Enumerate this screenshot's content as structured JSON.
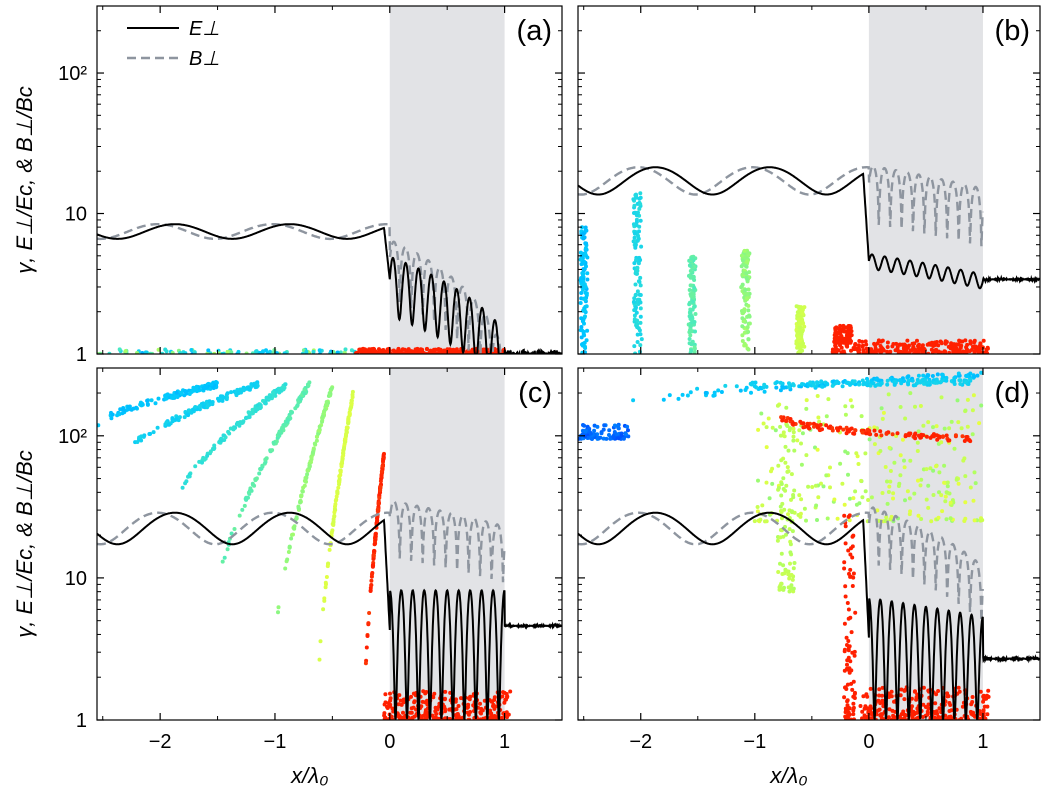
{
  "chart_data": {
    "type": "line+scatter",
    "x_axis": {
      "label": "x/λ₀",
      "range": [
        -2.55,
        1.5
      ],
      "ticks": [
        -2,
        -1,
        0,
        1
      ],
      "tick_labels": [
        "−2",
        "−1",
        "0",
        "1"
      ]
    },
    "y_axis": {
      "label": "γ, E⊥/Ec, & B⊥/Bc",
      "scale": "log",
      "range": [
        1,
        300
      ],
      "ticks": [
        1,
        10,
        100
      ],
      "tick_labels": [
        "1",
        "10",
        "10²"
      ]
    },
    "shaded_region": {
      "x": [
        0,
        1
      ],
      "color": "#e2e3e6"
    },
    "legend": {
      "position": "top-left of panel (a)",
      "entries": [
        {
          "label": "E⊥",
          "style": "solid",
          "color": "#000000"
        },
        {
          "label": "B⊥",
          "style": "dashed",
          "color": "#8e959f"
        }
      ]
    },
    "particle_colormap": [
      "#0050ff",
      "#00c8ff",
      "#40e8c8",
      "#b0ff60",
      "#e8ff40",
      "#ff2000"
    ],
    "panels": [
      {
        "label": "(a)",
        "E": {
          "lead_mean": 7.5,
          "lead_amp": 0.12,
          "lead_phase": 0.45,
          "inside": [
            3.4,
            1.0
          ],
          "inside_decay": 0.45,
          "outside": 1.0
        },
        "B": {
          "mean": 7.5,
          "amp": 0.12,
          "phase": 1.7,
          "inside": [
            6.5,
            1.0
          ],
          "behind_ratio": 0.2
        },
        "particles": [
          {
            "type": "band",
            "x": [
              -2.55,
              -0.3
            ],
            "y": [
              1.0,
              1.08
            ],
            "c": [
              0.15,
              0.6
            ]
          },
          {
            "type": "band",
            "x": [
              -0.3,
              1.0
            ],
            "y": [
              1.0,
              1.09
            ],
            "c": [
              1,
              1
            ],
            "dense": true
          }
        ]
      },
      {
        "label": "(b)",
        "E": {
          "lead_mean": 17.5,
          "lead_amp": 0.22,
          "lead_phase": 0.45,
          "inside": [
            4.6,
            3.3
          ],
          "inside_decay": 0.12,
          "outside": 3.4
        },
        "B": {
          "mean": 17.5,
          "amp": 0.22,
          "phase": 1.7,
          "inside": [
            22,
            15
          ],
          "behind_ratio": 0.2
        },
        "particles": [
          {
            "type": "spike",
            "x0": -2.5,
            "top": 8,
            "w": 0.05,
            "c": 0.2
          },
          {
            "type": "spike",
            "x0": -2.03,
            "top": 14,
            "w": 0.06,
            "c": 0.3
          },
          {
            "type": "spike",
            "x0": -1.55,
            "top": 5,
            "w": 0.05,
            "c": 0.45
          },
          {
            "type": "spike",
            "x0": -1.08,
            "top": 5.5,
            "w": 0.06,
            "c": 0.55
          },
          {
            "type": "spike",
            "x0": -0.6,
            "top": 2.2,
            "w": 0.06,
            "c": 0.7
          },
          {
            "type": "band",
            "x": [
              -0.32,
              1.05
            ],
            "y": [
              1.0,
              1.25
            ],
            "c": [
              1,
              1
            ],
            "dense": true
          },
          {
            "type": "band",
            "x": [
              -0.3,
              -0.15
            ],
            "y": [
              1.2,
              1.6
            ],
            "c": [
              1,
              1
            ]
          }
        ]
      },
      {
        "label": "(c)",
        "E": {
          "lead_mean": 23,
          "lead_amp": 0.25,
          "lead_phase": 0.45,
          "inside": [
            4.3,
            4.3
          ],
          "outside": 4.6,
          "oscillating": true
        },
        "B": {
          "mean": 23,
          "amp": 0.25,
          "phase": 1.7,
          "inside": [
            35,
            23
          ],
          "behind_ratio": 0.22
        },
        "particles": [
          {
            "type": "curve",
            "x": [
              -2.55,
              -1.5
            ],
            "y": [
              120,
              230
            ],
            "c": 0.2
          },
          {
            "type": "curve",
            "x": [
              -2.35,
              -1.15
            ],
            "y": [
              70,
              230
            ],
            "c": 0.25
          },
          {
            "type": "curve",
            "x": [
              -1.9,
              -0.9
            ],
            "y": [
              30,
              230
            ],
            "c": 0.35
          },
          {
            "type": "curve",
            "x": [
              -1.5,
              -0.7
            ],
            "y": [
              8,
              230
            ],
            "c": 0.45
          },
          {
            "type": "curve",
            "x": [
              -1.02,
              -0.5
            ],
            "y": [
              2.5,
              225
            ],
            "c": 0.55
          },
          {
            "type": "curve",
            "x": [
              -0.62,
              -0.32
            ],
            "y": [
              1.9,
              200
            ],
            "c": 0.75
          },
          {
            "type": "curve",
            "x": [
              -0.22,
              -0.05
            ],
            "y": [
              1.3,
              75
            ],
            "c": 1
          },
          {
            "type": "band",
            "x": [
              -0.05,
              1.05
            ],
            "y": [
              1.0,
              1.6
            ],
            "c": [
              1,
              1
            ],
            "dense": true
          }
        ]
      },
      {
        "label": "(d)",
        "E": {
          "lead_mean": 23,
          "lead_amp": 0.25,
          "lead_phase": 0.45,
          "inside": [
            3.8,
            2.8
          ],
          "inside_decay": 0.12,
          "outside": 2.7,
          "oscillating": true
        },
        "B": {
          "mean": 23,
          "amp": 0.25,
          "phase": 1.7,
          "inside": [
            32,
            12
          ],
          "behind_ratio": 0.22
        },
        "particles": [
          {
            "type": "band",
            "x": [
              -2.55,
              -2.1
            ],
            "y": [
              95,
              120
            ],
            "c": [
              0.0,
              0.08
            ]
          },
          {
            "type": "curve",
            "x": [
              -2.2,
              1.0
            ],
            "y": [
              165,
              270
            ],
            "c": 0.2
          },
          {
            "type": "curve",
            "x": [
              -1.6,
              0.9
            ],
            "y": [
              220,
              240
            ],
            "c": 0.25
          },
          {
            "type": "band",
            "x": [
              -1.0,
              1.0
            ],
            "y": [
              25,
              200
            ],
            "c": [
              0.55,
              0.8
            ],
            "dense": true
          },
          {
            "type": "band",
            "x": [
              -0.8,
              -0.65
            ],
            "y": [
              8,
              120
            ],
            "c": [
              0.6,
              0.7
            ]
          },
          {
            "type": "curve",
            "x": [
              -0.8,
              0.9
            ],
            "y": [
              150,
              95
            ],
            "c": 1
          },
          {
            "type": "band",
            "x": [
              -0.22,
              -0.12
            ],
            "y": [
              1.0,
              30
            ],
            "c": [
              1,
              1
            ]
          },
          {
            "type": "band",
            "x": [
              -0.08,
              1.05
            ],
            "y": [
              1.0,
              1.7
            ],
            "c": [
              1,
              1
            ],
            "dense": true
          }
        ]
      }
    ]
  }
}
